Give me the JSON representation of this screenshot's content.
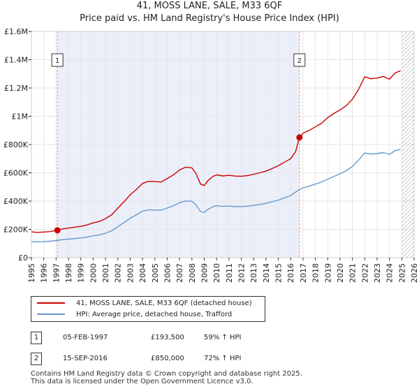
{
  "title": {
    "line1": "41, MOSS LANE, SALE, M33 6QF",
    "line2": "Price paid vs. HM Land Registry's House Price Index (HPI)"
  },
  "colors": {
    "property": "#cc0000",
    "hpi": "#6699cc",
    "marker_line": "#ff8888",
    "shade": "#dde4f5",
    "grid": "#e6e6e6",
    "hatch": "#999999"
  },
  "chart_data": {
    "type": "line",
    "title": "Price paid vs. HM Land Registry's House Price Index (HPI)",
    "xlabel": "",
    "ylabel": "",
    "xlim": [
      1995,
      2026
    ],
    "ylim": [
      0,
      1600000
    ],
    "y_ticks": [
      {
        "value": 0,
        "label": "£0"
      },
      {
        "value": 200000,
        "label": "£200K"
      },
      {
        "value": 400000,
        "label": "£400K"
      },
      {
        "value": 600000,
        "label": "£600K"
      },
      {
        "value": 800000,
        "label": "£800K"
      },
      {
        "value": 1000000,
        "label": "£1M"
      },
      {
        "value": 1200000,
        "label": "£1.2M"
      },
      {
        "value": 1400000,
        "label": "£1.4M"
      },
      {
        "value": 1600000,
        "label": "£1.6M"
      }
    ],
    "x_ticks": [
      "1995",
      "1996",
      "1997",
      "1998",
      "1999",
      "2000",
      "2001",
      "2002",
      "2003",
      "2004",
      "2005",
      "2006",
      "2007",
      "2008",
      "2009",
      "2010",
      "2011",
      "2012",
      "2013",
      "2014",
      "2015",
      "2016",
      "2017",
      "2018",
      "2019",
      "2020",
      "2021",
      "2022",
      "2023",
      "2024",
      "2025",
      "2026"
    ],
    "shaded_ranges": [
      [
        1997.1,
        2016.71
      ]
    ],
    "hatched_from": 2025.0,
    "series": [
      {
        "name": "41, MOSS LANE, SALE, M33 6QF (detached house)",
        "color": "#cc0000",
        "x": [
          1995.0,
          1995.5,
          1996.0,
          1996.5,
          1997.1,
          1997.5,
          1998.0,
          1998.5,
          1999.0,
          1999.5,
          2000.0,
          2000.5,
          2001.0,
          2001.5,
          2002.0,
          2002.5,
          2003.0,
          2003.5,
          2004.0,
          2004.5,
          2005.0,
          2005.5,
          2006.0,
          2006.5,
          2007.0,
          2007.5,
          2008.0,
          2008.3,
          2008.7,
          2009.0,
          2009.3,
          2009.7,
          2010.0,
          2010.5,
          2011.0,
          2011.5,
          2012.0,
          2012.5,
          2013.0,
          2013.5,
          2014.0,
          2014.5,
          2015.0,
          2015.5,
          2016.0,
          2016.4,
          2016.71,
          2017.0,
          2017.5,
          2018.0,
          2018.5,
          2019.0,
          2019.5,
          2020.0,
          2020.5,
          2021.0,
          2021.5,
          2022.0,
          2022.5,
          2023.0,
          2023.5,
          2024.0,
          2024.5,
          2024.9
        ],
        "values": [
          182000,
          179000,
          181000,
          184000,
          193500,
          203000,
          209000,
          216000,
          221000,
          231000,
          246000,
          256000,
          276000,
          303000,
          350000,
          395000,
          445000,
          482000,
          525000,
          540000,
          538000,
          535000,
          560000,
          585000,
          620000,
          640000,
          635000,
          600000,
          520000,
          510000,
          545000,
          575000,
          585000,
          578000,
          582000,
          577000,
          576000,
          580000,
          590000,
          600000,
          612000,
          630000,
          650000,
          675000,
          700000,
          750000,
          850000,
          880000,
          900000,
          925000,
          950000,
          990000,
          1020000,
          1045000,
          1075000,
          1120000,
          1190000,
          1280000,
          1265000,
          1270000,
          1282000,
          1262000,
          1308000,
          1322000
        ]
      },
      {
        "name": "HPI: Average price, detached house, Trafford",
        "color": "#6699cc",
        "x": [
          1995.0,
          1995.5,
          1996.0,
          1996.5,
          1997.0,
          1997.5,
          1998.0,
          1998.5,
          1999.0,
          1999.5,
          2000.0,
          2000.5,
          2001.0,
          2001.5,
          2002.0,
          2002.5,
          2003.0,
          2003.5,
          2004.0,
          2004.5,
          2005.0,
          2005.5,
          2006.0,
          2006.5,
          2007.0,
          2007.5,
          2008.0,
          2008.3,
          2008.7,
          2009.0,
          2009.3,
          2009.7,
          2010.0,
          2010.5,
          2011.0,
          2011.5,
          2012.0,
          2012.5,
          2013.0,
          2013.5,
          2014.0,
          2014.5,
          2015.0,
          2015.5,
          2016.0,
          2016.5,
          2017.0,
          2017.5,
          2018.0,
          2018.5,
          2019.0,
          2019.5,
          2020.0,
          2020.5,
          2021.0,
          2021.5,
          2022.0,
          2022.5,
          2023.0,
          2023.5,
          2024.0,
          2024.5,
          2024.9
        ],
        "values": [
          113000,
          112000,
          113000,
          116000,
          121000,
          127000,
          131000,
          135000,
          139000,
          145000,
          154000,
          161000,
          173000,
          190000,
          219000,
          248000,
          279000,
          302000,
          329000,
          339000,
          337000,
          335000,
          351000,
          367000,
          389000,
          401000,
          398000,
          376000,
          326000,
          320000,
          342000,
          360000,
          367000,
          362000,
          365000,
          361000,
          361000,
          364000,
          370000,
          376000,
          384000,
          395000,
          407000,
          423000,
          439000,
          470000,
          494000,
          505000,
          520000,
          535000,
          555000,
          575000,
          593000,
          615000,
          645000,
          690000,
          740000,
          733000,
          736000,
          743000,
          731000,
          758000,
          766000
        ]
      }
    ],
    "sales": [
      {
        "label": "1",
        "date": "05-FEB-1997",
        "x": 1997.1,
        "price": 193500,
        "price_label": "£193,500",
        "hpi_change": "59% ↑ HPI"
      },
      {
        "label": "2",
        "date": "15-SEP-2016",
        "x": 2016.71,
        "price": 850000,
        "price_label": "£850,000",
        "hpi_change": "72% ↑ HPI"
      }
    ]
  },
  "legend": {
    "property_label": "41, MOSS LANE, SALE, M33 6QF (detached house)",
    "hpi_label": "HPI: Average price, detached house, Trafford"
  },
  "footer": {
    "line1": "Contains HM Land Registry data © Crown copyright and database right 2025.",
    "line2": "This data is licensed under the Open Government Licence v3.0."
  }
}
